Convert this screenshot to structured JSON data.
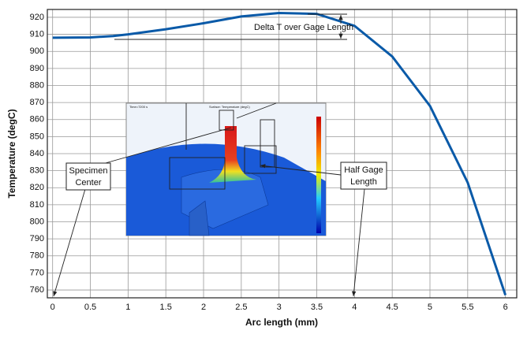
{
  "chart_data": {
    "type": "line",
    "xlabel": "Arc length (mm)",
    "ylabel": "Temperature (degC)",
    "series": [
      {
        "color": "#0a5aa8",
        "x": [
          0,
          0.5,
          0.8,
          1,
          1.5,
          2,
          2.5,
          3,
          3.5,
          4,
          4.5,
          5,
          5.5,
          6
        ],
        "values": [
          908,
          908.2,
          909,
          910,
          913,
          916.5,
          920.5,
          922.5,
          922,
          915,
          897,
          868,
          823,
          757
        ]
      }
    ],
    "xlim": [
      -0.07,
      6.15
    ],
    "ylim": [
      755.4,
      924.6
    ],
    "xticks": [
      0,
      0.5,
      1,
      1.5,
      2,
      2.5,
      3,
      3.5,
      4,
      4.5,
      5,
      5.5,
      6
    ],
    "yticks": [
      760,
      770,
      780,
      790,
      800,
      810,
      820,
      830,
      840,
      850,
      860,
      870,
      880,
      890,
      900,
      910,
      920
    ],
    "grid": true,
    "annotations": {
      "delta": "Delta T over Gage Length",
      "center": [
        "Specimen",
        "Center"
      ],
      "half": [
        "Half Gage",
        "Length"
      ]
    },
    "inset": {
      "time": "Time=7200 s",
      "surface": "Surface: Temperature (degC)"
    }
  }
}
